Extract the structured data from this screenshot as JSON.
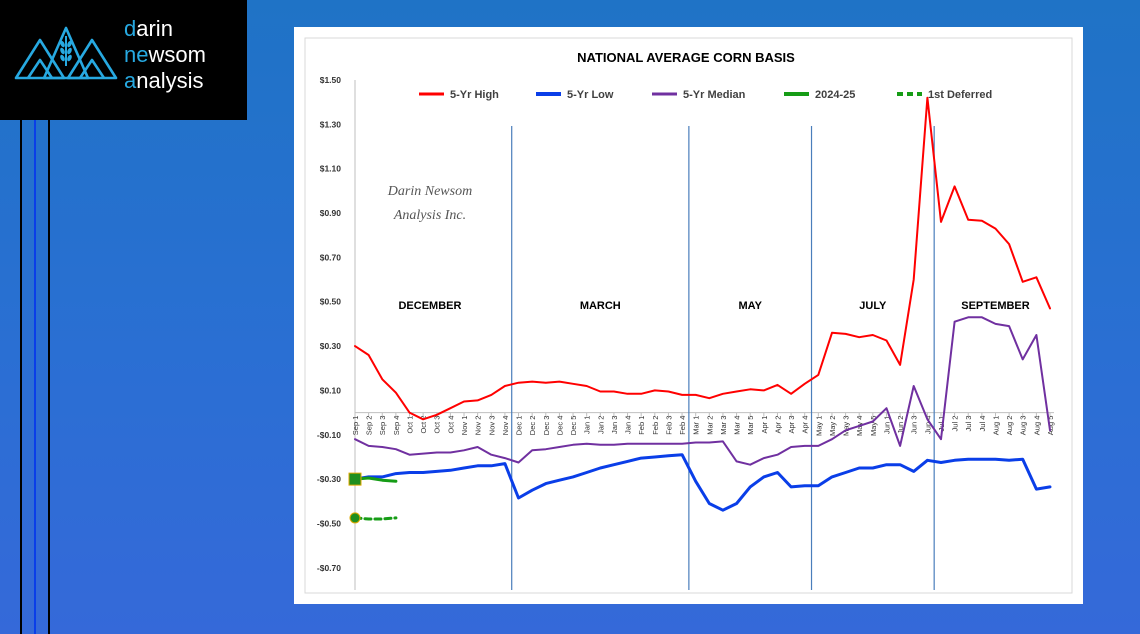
{
  "brand": {
    "logo_lines": [
      {
        "accent": "d",
        "rest": "arin"
      },
      {
        "accent": "ne",
        "rest": "wsom"
      },
      {
        "accent": "a",
        "rest": "nalysis"
      }
    ],
    "accent_color": "#27a9e1"
  },
  "chart_data": {
    "type": "line",
    "title": "NATIONAL AVERAGE CORN BASIS",
    "watermark": [
      "Darin Newsom",
      "Analysis Inc."
    ],
    "ylim": [
      -0.8,
      1.5
    ],
    "yticks": [
      1.5,
      1.3,
      1.1,
      0.9,
      0.7,
      0.5,
      0.3,
      0.1,
      -0.1,
      -0.3,
      -0.5,
      -0.7
    ],
    "ytick_labels": [
      "$1.50",
      "$1.30",
      "$1.10",
      "$0.90",
      "$0.70",
      "$0.50",
      "$0.30",
      "$0.10",
      "-$0.10",
      "-$0.30",
      "-$0.50",
      "-$0.70"
    ],
    "grid": false,
    "legend_position": "top",
    "categories": [
      "Sep 1",
      "Sep 2",
      "Sep 3",
      "Sep 4",
      "Oct 1",
      "Oct 2",
      "Oct 3",
      "Oct 4",
      "Nov 1",
      "Nov 2",
      "Nov 3",
      "Nov 4",
      "Dec 1",
      "Dec 2",
      "Dec 3",
      "Dec 4",
      "Dec 5",
      "Jan 1",
      "Jan 2",
      "Jan 3",
      "Jan 4",
      "Feb 1",
      "Feb 2",
      "Feb 3",
      "Feb 4",
      "Mar 1",
      "Mar 2",
      "Mar 3",
      "Mar 4",
      "Mar 5",
      "Apr 1",
      "Apr 2",
      "Apr 3",
      "Apr 4",
      "May 1",
      "May 2",
      "May 3",
      "May 4",
      "May 5",
      "Jun 1",
      "Jun 2",
      "Jun 3",
      "Jun 4",
      "Jul 1",
      "Jul 2",
      "Jul 3",
      "Jul 4",
      "Aug 1",
      "Aug 2",
      "Aug 3",
      "Aug 4",
      "Aug 5"
    ],
    "period_labels": [
      {
        "label": "DECEMBER",
        "start": 0,
        "end": 11
      },
      {
        "label": "MARCH",
        "start": 12,
        "end": 24
      },
      {
        "label": "MAY",
        "start": 25,
        "end": 33
      },
      {
        "label": "JULY",
        "start": 34,
        "end": 42
      },
      {
        "label": "SEPTEMBER",
        "start": 43,
        "end": 51
      }
    ],
    "dividers_after_index": [
      11.5,
      24.5,
      33.5,
      42.5
    ],
    "series": [
      {
        "name": "5-Yr High",
        "color": "#ff0000",
        "width": 2,
        "dash": "",
        "values": [
          0.3,
          0.26,
          0.15,
          0.09,
          0.0,
          -0.03,
          -0.01,
          0.02,
          0.05,
          0.055,
          0.08,
          0.12,
          0.135,
          0.14,
          0.135,
          0.14,
          0.13,
          0.12,
          0.095,
          0.095,
          0.085,
          0.085,
          0.1,
          0.095,
          0.08,
          0.08,
          0.065,
          0.085,
          0.095,
          0.105,
          0.1,
          0.125,
          0.085,
          0.13,
          0.17,
          0.36,
          0.355,
          0.34,
          0.35,
          0.325,
          0.215,
          0.6,
          1.42,
          0.86,
          1.02,
          0.87,
          0.865,
          0.83,
          0.76,
          0.59,
          0.61,
          0.47
        ]
      },
      {
        "name": "5-Yr Low",
        "color": "#0a3ee8",
        "width": 3,
        "dash": "",
        "values": [
          -0.3,
          -0.29,
          -0.29,
          -0.275,
          -0.27,
          -0.27,
          -0.265,
          -0.26,
          -0.25,
          -0.24,
          -0.24,
          -0.23,
          -0.385,
          -0.35,
          -0.32,
          -0.305,
          -0.29,
          -0.27,
          -0.25,
          -0.235,
          -0.22,
          -0.205,
          -0.2,
          -0.195,
          -0.19,
          -0.31,
          -0.41,
          -0.44,
          -0.41,
          -0.335,
          -0.29,
          -0.27,
          -0.335,
          -0.33,
          -0.33,
          -0.29,
          -0.27,
          -0.25,
          -0.25,
          -0.235,
          -0.235,
          -0.265,
          -0.215,
          -0.225,
          -0.215,
          -0.21,
          -0.21,
          -0.21,
          -0.215,
          -0.21,
          -0.345,
          -0.335
        ]
      },
      {
        "name": "5-Yr Median",
        "color": "#7030a0",
        "width": 2,
        "dash": "",
        "values": [
          -0.12,
          -0.15,
          -0.155,
          -0.165,
          -0.19,
          -0.185,
          -0.18,
          -0.18,
          -0.17,
          -0.155,
          -0.19,
          -0.205,
          -0.225,
          -0.17,
          -0.165,
          -0.155,
          -0.145,
          -0.14,
          -0.145,
          -0.145,
          -0.14,
          -0.14,
          -0.14,
          -0.14,
          -0.14,
          -0.135,
          -0.135,
          -0.13,
          -0.22,
          -0.235,
          -0.205,
          -0.19,
          -0.155,
          -0.15,
          -0.15,
          -0.12,
          -0.08,
          -0.06,
          -0.04,
          0.02,
          -0.15,
          0.12,
          -0.03,
          -0.12,
          0.41,
          0.43,
          0.43,
          0.4,
          0.39,
          0.24,
          0.35,
          -0.08
        ]
      },
      {
        "name": "2024-25",
        "color": "#169c16",
        "width": 3,
        "dash": "",
        "values": [
          -0.3,
          -0.295,
          -0.305,
          -0.31,
          null,
          null,
          null,
          null,
          null,
          null,
          null,
          null,
          null,
          null,
          null,
          null,
          null,
          null,
          null,
          null,
          null,
          null,
          null,
          null,
          null,
          null,
          null,
          null,
          null,
          null,
          null,
          null,
          null,
          null,
          null,
          null,
          null,
          null,
          null,
          null,
          null,
          null,
          null,
          null,
          null,
          null,
          null,
          null,
          null,
          null,
          null,
          null
        ]
      },
      {
        "name": "1st Deferred",
        "color": "#169c16",
        "width": 3,
        "dash": "6,4",
        "values": [
          -0.475,
          -0.48,
          -0.48,
          -0.475,
          null,
          null,
          null,
          null,
          null,
          null,
          null,
          null,
          null,
          null,
          null,
          null,
          null,
          null,
          null,
          null,
          null,
          null,
          null,
          null,
          null,
          null,
          null,
          null,
          null,
          null,
          null,
          null,
          null,
          null,
          null,
          null,
          null,
          null,
          null,
          null,
          null,
          null,
          null,
          null,
          null,
          null,
          null,
          null,
          null,
          null,
          null,
          null
        ]
      }
    ],
    "markers": [
      {
        "series": "2024-25",
        "index": 0,
        "value": -0.3,
        "shape": "square",
        "fill": "#1f8f1f",
        "stroke": "#e0a800"
      },
      {
        "series": "1st Deferred",
        "index": 0,
        "value": -0.475,
        "shape": "circle",
        "fill": "#1f8f1f",
        "stroke": "#e0a800"
      }
    ]
  }
}
